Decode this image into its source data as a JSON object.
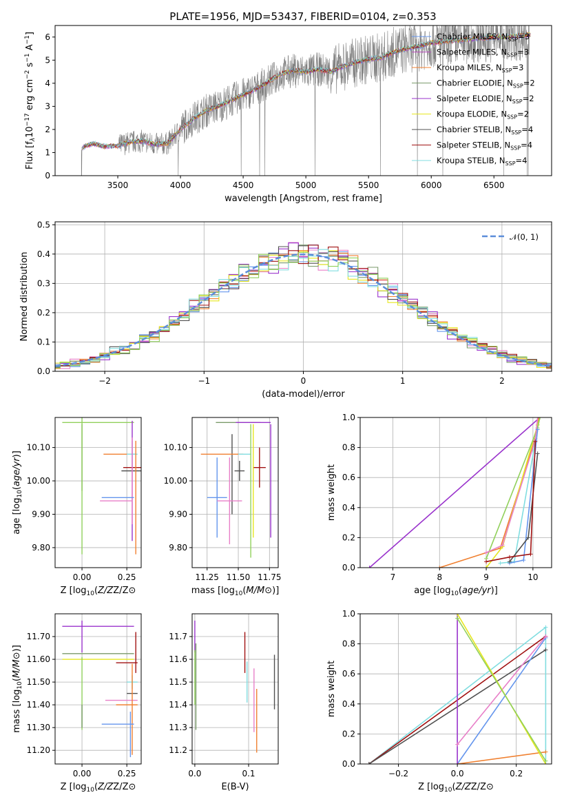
{
  "figure": {
    "title": "PLATE=1956, MJD=53437, FIBERID=0104, z=0.353"
  },
  "colors": {
    "chabrier_miles": "#6495ed",
    "salpeter_miles": "#b94fbf",
    "kroupa_miles": "#f08030",
    "chabrier_elodie": "#7a9a6a",
    "salpeter_elodie": "#9932cc",
    "kroupa_elodie": "#e6e61e",
    "chabrier_stelib": "#505050",
    "salpeter_stelib": "#a01010",
    "kroupa_stelib": "#80dde0",
    "pink": "#e87fc8",
    "green": "#90d05a",
    "gauss": "#5b8dd9",
    "data_spectrum": "#808080",
    "grid": "#b0b0b0"
  },
  "chart_data": [
    {
      "id": "spectrum",
      "type": "line",
      "title": "PLATE=1956, MJD=53437, FIBERID=0104, z=0.353",
      "xlabel": "wavelength [Angstrom, rest frame]",
      "ylabel": "Flux [f_λ10^-17 erg cm^-2 s^-1 A^-1]",
      "xlim": [
        3000,
        6960
      ],
      "ylim": [
        0,
        6.5
      ],
      "xticks": [
        3500,
        4000,
        4500,
        5000,
        5500,
        6000,
        6500
      ],
      "yticks": [
        0,
        1,
        2,
        3,
        4,
        5,
        6
      ],
      "grid": false,
      "legend_position": "top-right",
      "legend": [
        {
          "label": "Chabrier MILES, N",
          "sub": "SSP",
          "suffix": "=3",
          "color_key": "chabrier_miles"
        },
        {
          "label": "Salpeter MILES, N",
          "sub": "SSP",
          "suffix": "=3",
          "color_key": "salpeter_miles"
        },
        {
          "label": "Kroupa MILES, N",
          "sub": "SSP",
          "suffix": "=3",
          "color_key": "kroupa_miles"
        },
        {
          "label": "Chabrier ELODIE, N",
          "sub": "SSP",
          "suffix": "=2",
          "color_key": "chabrier_elodie"
        },
        {
          "label": "Salpeter ELODIE, N",
          "sub": "SSP",
          "suffix": "=2",
          "color_key": "salpeter_elodie"
        },
        {
          "label": "Kroupa ELODIE, N",
          "sub": "SSP",
          "suffix": "=2",
          "color_key": "kroupa_elodie"
        },
        {
          "label": "Chabrier STELIB, N",
          "sub": "SSP",
          "suffix": "=4",
          "color_key": "chabrier_stelib"
        },
        {
          "label": "Salpeter STELIB, N",
          "sub": "SSP",
          "suffix": "=4",
          "color_key": "salpeter_stelib"
        },
        {
          "label": "Kroupa STELIB, N",
          "sub": "SSP",
          "suffix": "=4",
          "color_key": "kroupa_stelib"
        }
      ],
      "model_trend": [
        [
          3210,
          1.2
        ],
        [
          3300,
          1.4
        ],
        [
          3400,
          1.25
        ],
        [
          3500,
          1.3
        ],
        [
          3600,
          1.45
        ],
        [
          3700,
          1.5
        ],
        [
          3800,
          1.35
        ],
        [
          3900,
          1.4
        ],
        [
          4000,
          2.0
        ],
        [
          4100,
          2.45
        ],
        [
          4200,
          2.8
        ],
        [
          4300,
          3.0
        ],
        [
          4400,
          3.25
        ],
        [
          4500,
          3.5
        ],
        [
          4600,
          3.75
        ],
        [
          4700,
          4.05
        ],
        [
          4800,
          4.4
        ],
        [
          4900,
          4.55
        ],
        [
          5000,
          4.5
        ],
        [
          5100,
          4.6
        ],
        [
          5200,
          4.5
        ],
        [
          5300,
          4.75
        ],
        [
          5400,
          4.9
        ],
        [
          5500,
          5.05
        ],
        [
          5600,
          5.1
        ],
        [
          5700,
          5.35
        ],
        [
          5800,
          5.5
        ],
        [
          5900,
          5.6
        ],
        [
          6000,
          5.75
        ],
        [
          6100,
          5.8
        ],
        [
          6200,
          5.85
        ],
        [
          6300,
          5.9
        ],
        [
          6400,
          5.95
        ],
        [
          6500,
          6.0
        ],
        [
          6600,
          6.0
        ],
        [
          6700,
          6.05
        ],
        [
          6790,
          6.1
        ]
      ]
    },
    {
      "id": "residuals",
      "type": "line",
      "xlabel": "(data-model)/error",
      "ylabel": "Normed distribution",
      "xlim": [
        -2.5,
        2.5
      ],
      "ylim": [
        0,
        0.51
      ],
      "xticks": [
        -2,
        -1,
        0,
        1,
        2
      ],
      "yticks": [
        0.0,
        0.1,
        0.2,
        0.3,
        0.4,
        0.5
      ],
      "grid": true,
      "legend_position": "top-right",
      "legend": [
        {
          "label": "𝒩(0, 1)",
          "color_key": "gauss",
          "style": "dashed"
        }
      ]
    },
    {
      "id": "age_vs_Z",
      "type": "scatter",
      "xlabel": "Z [log10(Z/Z⊙)]",
      "ylabel": "age [log10(age/yr)]",
      "xlim": [
        -0.15,
        0.33
      ],
      "ylim": [
        9.74,
        10.19
      ],
      "xticks": [
        0.0,
        0.25
      ],
      "yticks": [
        9.8,
        9.9,
        10.0,
        10.1
      ],
      "grid": true,
      "errorbars": [
        {
          "x": 0.09,
          "y": 10.175,
          "xerr": 0.2,
          "yerr": 0.0,
          "color_key": "green"
        },
        {
          "x": 0.0,
          "y": 10.07,
          "xerr": 0.0,
          "yerr": 0.1,
          "color_key": "chabrier_elodie"
        },
        {
          "x": 0.0,
          "y": 10.0,
          "xerr": 0.0,
          "yerr": 0.22,
          "color_key": "green"
        },
        {
          "x": 0.21,
          "y": 10.08,
          "xerr": 0.09,
          "yerr": 0.0,
          "color_key": "kroupa_miles"
        },
        {
          "x": 0.28,
          "y": 10.08,
          "xerr": 0.03,
          "yerr": 0.04,
          "color_key": "kroupa_stelib"
        },
        {
          "x": 0.28,
          "y": 10.03,
          "xerr": 0.06,
          "yerr": 0.0,
          "color_key": "chabrier_stelib"
        },
        {
          "x": 0.28,
          "y": 10.04,
          "xerr": 0.05,
          "yerr": 0.0,
          "color_key": "salpeter_stelib"
        },
        {
          "x": 0.28,
          "y": 10.0,
          "xerr": 0.0,
          "yerr": 0.18,
          "color_key": "salpeter_elodie"
        },
        {
          "x": 0.28,
          "y": 10.0,
          "xerr": 0.0,
          "yerr": 0.13,
          "color_key": "pink"
        },
        {
          "x": 0.2,
          "y": 9.95,
          "xerr": 0.09,
          "yerr": 0.0,
          "color_key": "chabrier_miles"
        },
        {
          "x": 0.19,
          "y": 9.94,
          "xerr": 0.09,
          "yerr": 0.0,
          "color_key": "pink"
        },
        {
          "x": 0.3,
          "y": 9.95,
          "xerr": 0.0,
          "yerr": 0.17,
          "color_key": "kroupa_miles"
        }
      ]
    },
    {
      "id": "age_vs_mass",
      "type": "scatter",
      "xlabel": "mass [log10(M/M⊙)]",
      "ylabel": "",
      "xlim": [
        11.13,
        11.82
      ],
      "ylim": [
        9.74,
        10.19
      ],
      "xticks": [
        11.25,
        11.5,
        11.75
      ],
      "yticks": [
        9.8,
        9.9,
        10.0,
        10.1
      ],
      "grid": true,
      "errorbars": [
        {
          "x": 11.5,
          "y": 10.175,
          "xerr": 0.18,
          "yerr": 0.0,
          "color_key": "chabrier_elodie"
        },
        {
          "x": 11.62,
          "y": 10.175,
          "xerr": 0.14,
          "yerr": 0.0,
          "color_key": "salpeter_elodie"
        },
        {
          "x": 11.45,
          "y": 10.02,
          "xerr": 0.0,
          "yerr": 0.12,
          "color_key": "chabrier_stelib"
        },
        {
          "x": 11.37,
          "y": 10.08,
          "xerr": 0.17,
          "yerr": 0.0,
          "color_key": "kroupa_miles"
        },
        {
          "x": 11.55,
          "y": 10.08,
          "xerr": 0.05,
          "yerr": 0.0,
          "color_key": "kroupa_stelib"
        },
        {
          "x": 11.33,
          "y": 9.95,
          "xerr": 0.08,
          "yerr": 0.12,
          "color_key": "chabrier_miles"
        },
        {
          "x": 11.43,
          "y": 9.94,
          "xerr": 0.1,
          "yerr": 0.13,
          "color_key": "pink"
        },
        {
          "x": 11.51,
          "y": 10.03,
          "xerr": 0.04,
          "yerr": 0.03,
          "color_key": "chabrier_stelib"
        },
        {
          "x": 11.67,
          "y": 10.04,
          "xerr": 0.05,
          "yerr": 0.06,
          "color_key": "salpeter_stelib"
        },
        {
          "x": 11.6,
          "y": 9.97,
          "xerr": 0.0,
          "yerr": 0.2,
          "color_key": "green"
        },
        {
          "x": 11.62,
          "y": 10.0,
          "xerr": 0.0,
          "yerr": 0.17,
          "color_key": "kroupa_elodie"
        },
        {
          "x": 11.76,
          "y": 10.0,
          "xerr": 0.0,
          "yerr": 0.17,
          "color_key": "salpeter_elodie"
        }
      ]
    },
    {
      "id": "mass_weight_vs_age",
      "type": "line",
      "xlabel": "age [log10(age/yr)]",
      "ylabel": "mass weight",
      "xlim": [
        6.3,
        10.4
      ],
      "ylim": [
        0,
        1.0
      ],
      "xticks": [
        7,
        8,
        9,
        10
      ],
      "yticks": [
        0.0,
        0.2,
        0.4,
        0.6,
        0.8,
        1.0
      ],
      "grid": true,
      "series": [
        {
          "color_key": "salpeter_elodie",
          "points": [
            [
              6.5,
              0.0
            ],
            [
              10.15,
              1.0
            ]
          ]
        },
        {
          "color_key": "kroupa_miles",
          "points": [
            [
              8.0,
              0.0
            ],
            [
              9.3,
              0.13
            ],
            [
              10.05,
              0.86
            ],
            [
              10.12,
              1.0
            ]
          ]
        },
        {
          "color_key": "kroupa_elodie",
          "points": [
            [
              9.0,
              0.0
            ],
            [
              9.35,
              0.14
            ],
            [
              10.1,
              0.95
            ],
            [
              10.15,
              1.0
            ]
          ]
        },
        {
          "color_key": "green",
          "points": [
            [
              9.0,
              0.06
            ],
            [
              10.1,
              0.93
            ],
            [
              10.15,
              1.0
            ]
          ]
        },
        {
          "color_key": "pink",
          "points": [
            [
              9.0,
              0.1
            ],
            [
              9.35,
              0.15
            ],
            [
              10.05,
              0.85
            ],
            [
              10.1,
              1.0
            ]
          ]
        },
        {
          "color_key": "kroupa_stelib",
          "points": [
            [
              9.3,
              0.03
            ],
            [
              9.6,
              0.04
            ],
            [
              10.05,
              0.84
            ]
          ]
        },
        {
          "color_key": "chabrier_miles",
          "points": [
            [
              9.5,
              0.03
            ],
            [
              9.8,
              0.05
            ],
            [
              10.1,
              0.92
            ]
          ]
        },
        {
          "color_key": "chabrier_stelib",
          "points": [
            [
              9.5,
              0.04
            ],
            [
              9.9,
              0.2
            ],
            [
              10.1,
              0.76
            ]
          ]
        },
        {
          "color_key": "salpeter_stelib",
          "points": [
            [
              9.0,
              0.04
            ],
            [
              9.5,
              0.07
            ],
            [
              9.95,
              0.09
            ],
            [
              10.05,
              0.84
            ]
          ]
        }
      ]
    },
    {
      "id": "mass_vs_Z",
      "type": "scatter",
      "xlabel": "Z [log10(Z/Z⊙)]",
      "ylabel": "mass [log10(M/M⊙)]",
      "xlim": [
        -0.15,
        0.33
      ],
      "ylim": [
        11.14,
        11.8
      ],
      "xticks": [
        0.0,
        0.25
      ],
      "yticks": [
        11.2,
        11.3,
        11.4,
        11.5,
        11.6,
        11.7
      ],
      "grid": true,
      "errorbars": [
        {
          "x": 0.09,
          "y": 11.745,
          "xerr": 0.2,
          "yerr": 0.0,
          "color_key": "salpeter_elodie"
        },
        {
          "x": 0.0,
          "y": 11.7,
          "xerr": 0.0,
          "yerr": 0.07,
          "color_key": "salpeter_elodie"
        },
        {
          "x": 0.09,
          "y": 11.625,
          "xerr": 0.2,
          "yerr": 0.0,
          "color_key": "chabrier_elodie"
        },
        {
          "x": 0.09,
          "y": 11.6,
          "xerr": 0.2,
          "yerr": 0.0,
          "color_key": "kroupa_elodie"
        },
        {
          "x": 0.0,
          "y": 11.45,
          "xerr": 0.0,
          "yerr": 0.16,
          "color_key": "green"
        },
        {
          "x": 0.0,
          "y": 11.35,
          "xerr": 0.0,
          "yerr": 0.05,
          "color_key": "chabrier_elodie"
        },
        {
          "x": 0.25,
          "y": 11.585,
          "xerr": 0.06,
          "yerr": 0.0,
          "color_key": "salpeter_stelib"
        },
        {
          "x": 0.3,
          "y": 11.63,
          "xerr": 0.0,
          "yerr": 0.09,
          "color_key": "salpeter_stelib"
        },
        {
          "x": 0.28,
          "y": 11.5,
          "xerr": 0.03,
          "yerr": 0.03,
          "color_key": "kroupa_stelib"
        },
        {
          "x": 0.28,
          "y": 11.45,
          "xerr": 0.03,
          "yerr": 0.0,
          "color_key": "chabrier_stelib"
        },
        {
          "x": 0.22,
          "y": 11.42,
          "xerr": 0.09,
          "yerr": 0.0,
          "color_key": "pink"
        },
        {
          "x": 0.25,
          "y": 11.4,
          "xerr": 0.06,
          "yerr": 0.0,
          "color_key": "kroupa_miles"
        },
        {
          "x": 0.28,
          "y": 11.38,
          "xerr": 0.0,
          "yerr": 0.2,
          "color_key": "kroupa_miles"
        },
        {
          "x": 0.2,
          "y": 11.315,
          "xerr": 0.09,
          "yerr": 0.0,
          "color_key": "chabrier_miles"
        },
        {
          "x": 0.27,
          "y": 11.27,
          "xerr": 0.0,
          "yerr": 0.1,
          "color_key": "chabrier_miles"
        }
      ]
    },
    {
      "id": "mass_vs_ebv",
      "type": "scatter",
      "xlabel": "E(B-V)",
      "ylabel": "",
      "xlim": [
        -0.005,
        0.155
      ],
      "ylim": [
        11.14,
        11.8
      ],
      "xticks": [
        0.0,
        0.1
      ],
      "yticks": [
        11.2,
        11.3,
        11.4,
        11.5,
        11.6,
        11.7
      ],
      "grid": true,
      "errorbars": [
        {
          "x": 0.0,
          "y": 11.7,
          "xerr": 0.0,
          "yerr": 0.07,
          "color_key": "salpeter_elodie"
        },
        {
          "x": 0.0,
          "y": 11.52,
          "xerr": 0.0,
          "yerr": 0.12,
          "color_key": "green"
        },
        {
          "x": 0.002,
          "y": 11.48,
          "xerr": 0.0,
          "yerr": 0.19,
          "color_key": "chabrier_elodie"
        },
        {
          "x": 0.093,
          "y": 11.63,
          "xerr": 0.0,
          "yerr": 0.09,
          "color_key": "salpeter_stelib"
        },
        {
          "x": 0.097,
          "y": 11.5,
          "xerr": 0.0,
          "yerr": 0.09,
          "color_key": "kroupa_stelib"
        },
        {
          "x": 0.11,
          "y": 11.42,
          "xerr": 0.0,
          "yerr": 0.14,
          "color_key": "pink"
        },
        {
          "x": 0.115,
          "y": 11.33,
          "xerr": 0.0,
          "yerr": 0.14,
          "color_key": "kroupa_miles"
        },
        {
          "x": 0.148,
          "y": 11.5,
          "xerr": 0.0,
          "yerr": 0.12,
          "color_key": "chabrier_stelib"
        }
      ]
    },
    {
      "id": "mass_weight_vs_Z",
      "type": "line",
      "xlabel": "Z [log10(Z/Z⊙)]",
      "ylabel": "mass weight",
      "xlim": [
        -0.33,
        0.32
      ],
      "ylim": [
        0,
        1.0
      ],
      "xticks": [
        -0.2,
        0.0,
        0.2
      ],
      "yticks": [
        0.0,
        0.2,
        0.4,
        0.6,
        0.8,
        1.0
      ],
      "grid": true,
      "series": [
        {
          "color_key": "kroupa_stelib",
          "points": [
            [
              -0.3,
              0.0
            ],
            [
              0.3,
              0.91
            ],
            [
              0.3,
              0.0
            ]
          ]
        },
        {
          "color_key": "salpeter_stelib",
          "points": [
            [
              -0.3,
              0.0
            ],
            [
              0.3,
              0.85
            ]
          ]
        },
        {
          "color_key": "chabrier_stelib",
          "points": [
            [
              -0.3,
              0.0
            ],
            [
              0.3,
              0.76
            ]
          ]
        },
        {
          "color_key": "chabrier_miles",
          "points": [
            [
              0.0,
              0.0
            ],
            [
              0.3,
              0.84
            ]
          ]
        },
        {
          "color_key": "kroupa_miles",
          "points": [
            [
              0.0,
              0.0
            ],
            [
              0.3,
              0.08
            ]
          ]
        },
        {
          "color_key": "salpeter_elodie",
          "points": [
            [
              0.0,
              0.0
            ],
            [
              0.0,
              1.0
            ]
          ]
        },
        {
          "color_key": "pink",
          "points": [
            [
              0.0,
              0.13
            ],
            [
              0.3,
              0.85
            ]
          ]
        },
        {
          "color_key": "kroupa_elodie",
          "points": [
            [
              0.0,
              1.0
            ],
            [
              0.3,
              0.0
            ]
          ]
        },
        {
          "color_key": "green",
          "points": [
            [
              0.0,
              0.97
            ],
            [
              0.3,
              0.02
            ]
          ]
        }
      ]
    }
  ]
}
